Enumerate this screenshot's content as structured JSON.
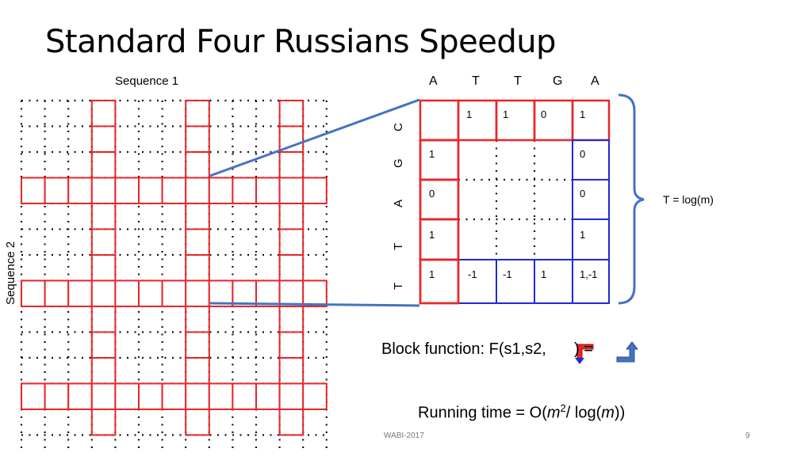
{
  "slide": {
    "title": "Standard Four Russians Speedup",
    "sequence1_label": "Sequence 1",
    "sequence2_label": "Sequence 2",
    "top_letters": [
      "A",
      "T",
      "T",
      "G",
      "A"
    ],
    "side_letters": [
      "C",
      "G",
      "A",
      "T",
      "T"
    ],
    "block_top_row": [
      "1",
      "1",
      "0",
      "1"
    ],
    "block_left_col": [
      "1",
      "0",
      "1",
      "1"
    ],
    "block_right_col": [
      "0",
      "0",
      "1"
    ],
    "block_bottom_row": [
      "-1",
      "-1",
      "1",
      "1,-1"
    ],
    "t_label": "T = log(m)",
    "block_function_prefix": "Block function: F(s1,s2, ",
    "block_function_suffix": " ) = ",
    "running_time_prefix": "Running time = O(",
    "running_time_m": "m",
    "running_time_exp": "2",
    "running_time_mid": "/ log(",
    "running_time_m2": "m",
    "running_time_suffix": "))",
    "footer_center": "WABI-2017",
    "page_number": "9"
  },
  "colors": {
    "red": "#e8262a",
    "blue": "#1f2ad6",
    "connector": "#4472c4",
    "brace": "#4472c4"
  }
}
